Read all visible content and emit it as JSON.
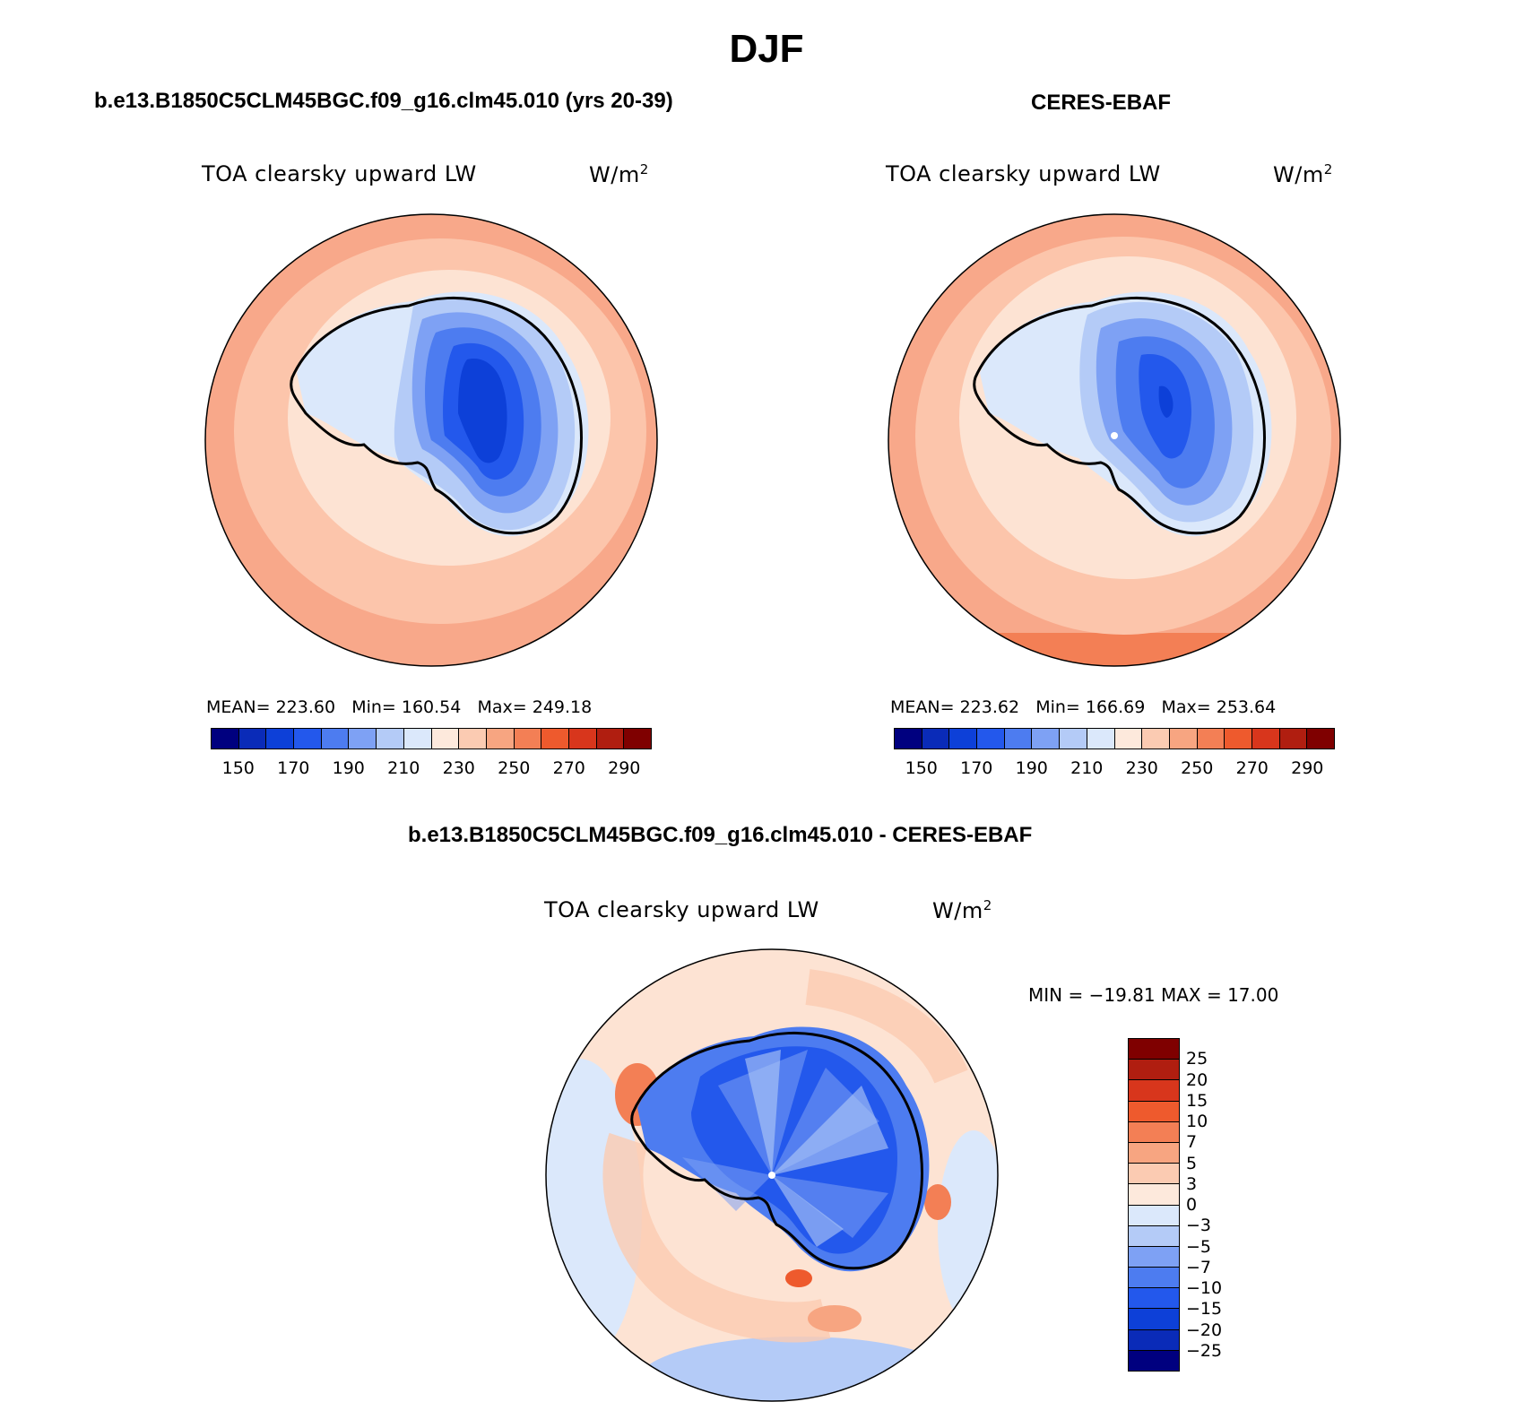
{
  "title": "DJF",
  "panels": [
    {
      "title": "b.e13.B1850C5CLM45BGC.f09_g16.clm45.010 (yrs 20-39)",
      "variable": "TOA clearsky upward LW",
      "units_base": "W/m",
      "units_exp": "2",
      "stats_mean_label": "MEAN=",
      "stats_mean": "223.60",
      "stats_min_label": "Min=",
      "stats_min": "160.54",
      "stats_max_label": "Max=",
      "stats_max": "249.18"
    },
    {
      "title": "CERES-EBAF",
      "variable": "TOA clearsky upward LW",
      "units_base": "W/m",
      "units_exp": "2",
      "stats_mean_label": "MEAN=",
      "stats_mean": "223.62",
      "stats_min_label": "Min=",
      "stats_min": "166.69",
      "stats_max_label": "Max=",
      "stats_max": "253.64"
    },
    {
      "title": "b.e13.B1850C5CLM45BGC.f09_g16.clm45.010 - CERES-EBAF",
      "variable": "TOA clearsky upward LW",
      "units_base": "W/m",
      "units_exp": "2",
      "minmax_text": "MIN = −19.81 MAX =  17.00"
    }
  ],
  "abs_colorbar": {
    "colors": [
      "#00007f",
      "#0a2bb8",
      "#0d40d8",
      "#2358ec",
      "#4d7cf0",
      "#7ea1f4",
      "#b4cbf7",
      "#dbe8fb",
      "#fde9dc",
      "#fbcbb2",
      "#f7a581",
      "#f37f55",
      "#ee5a2d",
      "#d8361c",
      "#b01e10",
      "#7f0000"
    ],
    "labels": [
      "150",
      "170",
      "190",
      "210",
      "230",
      "250",
      "270",
      "290"
    ]
  },
  "diff_colorbar": {
    "colors_top_to_bottom": [
      "#7f0000",
      "#b01e10",
      "#d8361c",
      "#ee5a2d",
      "#f37f55",
      "#f7a581",
      "#fbcbb2",
      "#fde9dc",
      "#dbe8fb",
      "#b4cbf7",
      "#7ea1f4",
      "#4d7cf0",
      "#2358ec",
      "#0d40d8",
      "#0a2bb8",
      "#00007f"
    ],
    "labels_top_to_bottom": [
      "25",
      "20",
      "15",
      "10",
      "7",
      "5",
      "3",
      "0",
      "−3",
      "−5",
      "−7",
      "−10",
      "−15",
      "−20",
      "−25"
    ]
  }
}
